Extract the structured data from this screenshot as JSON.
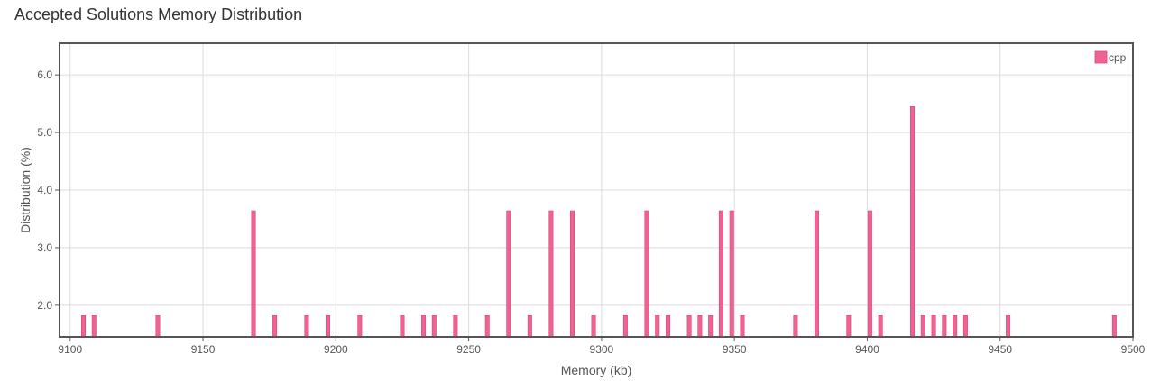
{
  "page_title": "Accepted Solutions Memory Distribution",
  "chart_data": {
    "type": "bar",
    "xlabel": "Memory (kb)",
    "ylabel": "Distribution (%)",
    "xlim": [
      9096,
      9500
    ],
    "ylim": [
      1.45,
      6.55
    ],
    "x_ticks": [
      9100,
      9150,
      9200,
      9250,
      9300,
      9350,
      9400,
      9450,
      9500
    ],
    "y_ticks": [
      2.0,
      3.0,
      4.0,
      5.0,
      6.0
    ],
    "x_tick_labels": [
      "9100",
      "9150",
      "9200",
      "9250",
      "9300",
      "9350",
      "9400",
      "9450",
      "9500"
    ],
    "y_tick_labels": [
      "2.0",
      "3.0",
      "4.0",
      "5.0",
      "6.0"
    ],
    "grid": true,
    "legend_position": "top-right",
    "series": [
      {
        "name": "cpp",
        "color": "#f06292",
        "points": [
          [
            9105,
            1.82
          ],
          [
            9109,
            1.82
          ],
          [
            9133,
            1.82
          ],
          [
            9169,
            3.64
          ],
          [
            9177,
            1.82
          ],
          [
            9189,
            1.82
          ],
          [
            9197,
            1.82
          ],
          [
            9209,
            1.82
          ],
          [
            9225,
            1.82
          ],
          [
            9233,
            1.82
          ],
          [
            9237,
            1.82
          ],
          [
            9245,
            1.82
          ],
          [
            9257,
            1.82
          ],
          [
            9265,
            3.64
          ],
          [
            9273,
            1.82
          ],
          [
            9281,
            3.64
          ],
          [
            9289,
            3.64
          ],
          [
            9297,
            1.82
          ],
          [
            9309,
            1.82
          ],
          [
            9317,
            3.64
          ],
          [
            9321,
            1.82
          ],
          [
            9325,
            1.82
          ],
          [
            9333,
            1.82
          ],
          [
            9337,
            1.82
          ],
          [
            9341,
            1.82
          ],
          [
            9345,
            3.64
          ],
          [
            9349,
            3.64
          ],
          [
            9353,
            1.82
          ],
          [
            9373,
            1.82
          ],
          [
            9381,
            3.64
          ],
          [
            9393,
            1.82
          ],
          [
            9401,
            3.64
          ],
          [
            9405,
            1.82
          ],
          [
            9417,
            5.45
          ],
          [
            9421,
            1.82
          ],
          [
            9425,
            1.82
          ],
          [
            9429,
            1.82
          ],
          [
            9433,
            1.82
          ],
          [
            9437,
            1.82
          ],
          [
            9453,
            1.82
          ],
          [
            9493,
            1.82
          ]
        ]
      }
    ]
  }
}
